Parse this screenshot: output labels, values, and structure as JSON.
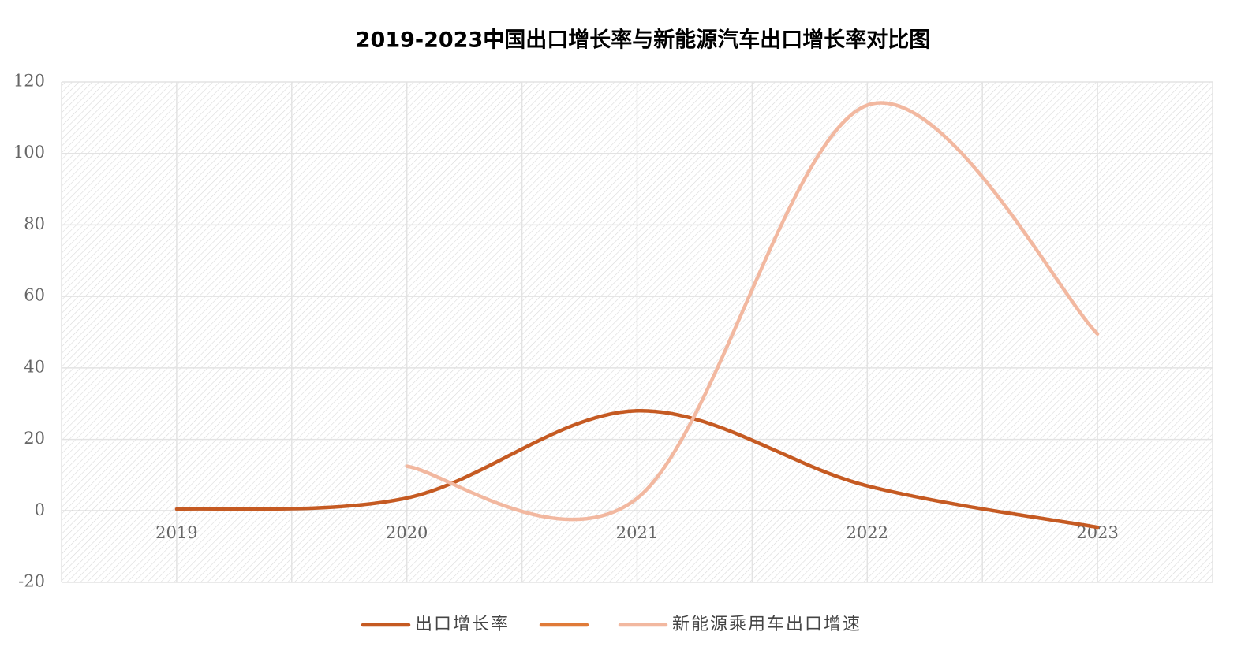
{
  "chart_data": {
    "type": "line",
    "title": "2019-2023中国出口增长率与新能源汽车出口增长率对比图",
    "categories": [
      "2019",
      "2020",
      "2021",
      "2022",
      "2023"
    ],
    "series": [
      {
        "name": "出口增长率",
        "color": "#c55a22",
        "values": [
          0.5,
          3.6,
          28.0,
          7.0,
          -4.6
        ]
      },
      {
        "color": "#e07b39",
        "values": [
          null,
          null,
          null,
          null,
          null
        ]
      },
      {
        "name": "新能源乘用车出口增速",
        "color": "#f2b8a0",
        "values": [
          null,
          12.5,
          3.5,
          113.5,
          49.5
        ]
      }
    ],
    "ylim": [
      -20,
      120
    ],
    "yticks": [
      -20,
      0,
      20,
      40,
      60,
      80,
      100,
      120
    ],
    "grid": true,
    "smooth": true,
    "legend": "bottom"
  }
}
